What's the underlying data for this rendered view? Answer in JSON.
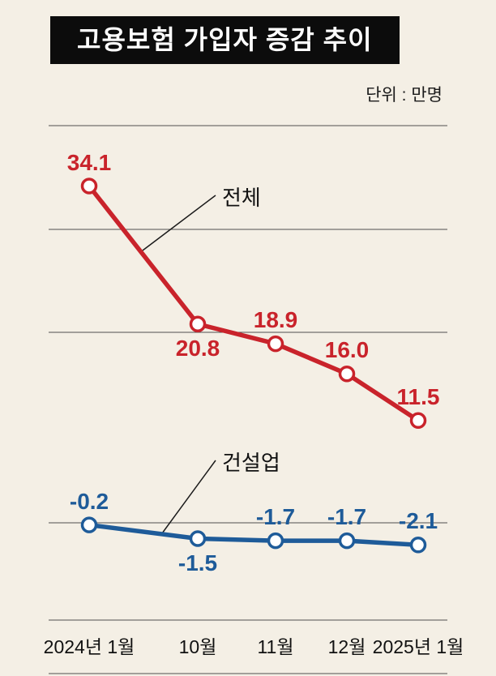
{
  "header": {
    "title": "고용보험 가입자 증감 추이",
    "unit_label": "단위 : 만명"
  },
  "chart_data": {
    "type": "line",
    "categories": [
      "2024년 1월",
      "10월",
      "11월",
      "12월",
      "2025년 1월"
    ],
    "series": [
      {
        "name": "전체",
        "color": "#c9232b",
        "values": [
          34.1,
          20.8,
          18.9,
          16.0,
          11.5
        ],
        "label_positions": [
          "above",
          "below",
          "above",
          "above",
          "above"
        ]
      },
      {
        "name": "건설업",
        "color": "#1e5b99",
        "values": [
          -0.2,
          -1.5,
          -1.7,
          -1.7,
          -2.1
        ],
        "label_positions": [
          "above",
          "below",
          "above",
          "above",
          "above"
        ]
      }
    ],
    "title": "고용보험 가입자 증감 추이",
    "xlabel": "",
    "ylabel": "만명",
    "grid": "horizontal",
    "legend_position": "inline-annotation",
    "ylim_total_section": [
      10,
      42
    ],
    "construction_baseline": 0,
    "value_label_format": "one-decimal"
  }
}
